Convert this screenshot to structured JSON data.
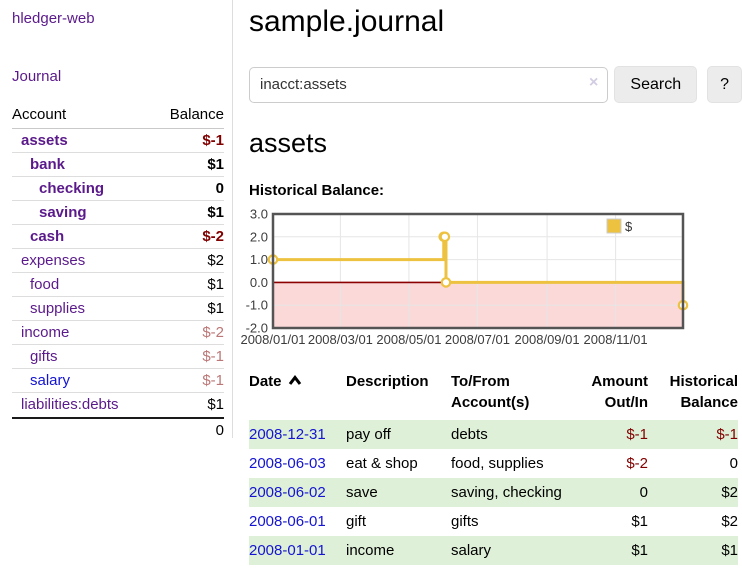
{
  "sidebar": {
    "brand": "hledger-web",
    "nav_journal": "Journal",
    "accounts_header": {
      "account": "Account",
      "balance": "Balance"
    },
    "accounts": [
      {
        "name": "assets",
        "indent": 1,
        "bold": true,
        "balance": "$-1",
        "balance_class": "neg",
        "link_color": "purple"
      },
      {
        "name": "bank",
        "indent": 2,
        "bold": true,
        "balance": "$1",
        "balance_class": "",
        "link_color": "purple"
      },
      {
        "name": "checking",
        "indent": 3,
        "bold": true,
        "balance": "0",
        "balance_class": "",
        "link_color": "purple"
      },
      {
        "name": "saving",
        "indent": 3,
        "bold": true,
        "balance": "$1",
        "balance_class": "",
        "link_color": "purple"
      },
      {
        "name": "cash",
        "indent": 2,
        "bold": true,
        "balance": "$-2",
        "balance_class": "neg",
        "link_color": "purple"
      },
      {
        "name": "expenses",
        "indent": 1,
        "bold": false,
        "balance": "$2",
        "balance_class": "",
        "link_color": "purple"
      },
      {
        "name": "food",
        "indent": 2,
        "bold": false,
        "balance": "$1",
        "balance_class": "",
        "link_color": "purple"
      },
      {
        "name": "supplies",
        "indent": 2,
        "bold": false,
        "balance": "$1",
        "balance_class": "",
        "link_color": "purple"
      },
      {
        "name": "income",
        "indent": 1,
        "bold": false,
        "balance": "$-2",
        "balance_class": "negdim",
        "link_color": "purple"
      },
      {
        "name": "gifts",
        "indent": 2,
        "bold": false,
        "balance": "$-1",
        "balance_class": "negdim",
        "link_color": "purple"
      },
      {
        "name": "salary",
        "indent": 2,
        "bold": false,
        "balance": "$-1",
        "balance_class": "negdim",
        "link_color": "blue"
      },
      {
        "name": "liabilities:debts",
        "indent": 1,
        "bold": false,
        "balance": "$1",
        "balance_class": "",
        "link_color": "purple"
      }
    ],
    "total": "0"
  },
  "main": {
    "title": "sample.journal",
    "search": {
      "value": "inacct:assets",
      "clear_icon": "×",
      "button_label": "Search",
      "help_label": "?"
    },
    "account_heading": "assets",
    "chart_label": "Historical Balance:"
  },
  "chart_data": {
    "type": "line",
    "step": true,
    "title": "Historical Balance",
    "series": [
      {
        "name": "$",
        "points": [
          [
            "2008-01-01",
            1
          ],
          [
            "2008-06-01",
            2
          ],
          [
            "2008-06-02",
            2
          ],
          [
            "2008-06-03",
            0
          ],
          [
            "2008-12-31",
            -1
          ]
        ],
        "color": "#edc240"
      }
    ],
    "xlim": [
      "2008-01-01",
      "2008-12-31"
    ],
    "ylim": [
      -2,
      3
    ],
    "y_ticks": [
      "3.0",
      "2.0",
      "1.0",
      "0.0",
      "-1.0",
      "-2.0"
    ],
    "x_ticks": [
      {
        "date": "2008-01-01",
        "label": "2008/01/01"
      },
      {
        "date": "2008-03-01",
        "label": "2008/03/01"
      },
      {
        "date": "2008-05-01",
        "label": "2008/05/01"
      },
      {
        "date": "2008-07-01",
        "label": "2008/07/01"
      },
      {
        "date": "2008-09-01",
        "label": "2008/09/01"
      },
      {
        "date": "2008-11-01",
        "label": "2008/11/01"
      }
    ],
    "grid": true,
    "legend_position": "top-right",
    "legend_label": "$",
    "colors": {
      "line": "#edc240",
      "marker_fill": "#ffffff",
      "negative_region": "#fbd9d9",
      "zero_line": "#8b0000",
      "grid": "#e6e6e6",
      "border": "#545454",
      "tick_text": "#3c3c3c"
    }
  },
  "table": {
    "headers": {
      "date": "Date",
      "description": "Description",
      "accounts": "To/From Account(s)",
      "amount": "Amount Out/In",
      "balance": "Historical Balance"
    },
    "rows": [
      {
        "date": "2008-12-31",
        "description": "pay off",
        "accounts": "debts",
        "amount": "$-1",
        "amount_class": "neg",
        "balance": "$-1",
        "balance_class": "neg"
      },
      {
        "date": "2008-06-03",
        "description": "eat & shop",
        "accounts": "food, supplies",
        "amount": "$-2",
        "amount_class": "neg",
        "balance": "0",
        "balance_class": ""
      },
      {
        "date": "2008-06-02",
        "description": "save",
        "accounts": "saving, checking",
        "amount": "0",
        "amount_class": "",
        "balance": "$2",
        "balance_class": ""
      },
      {
        "date": "2008-06-01",
        "description": "gift",
        "accounts": "gifts",
        "amount": "$1",
        "amount_class": "",
        "balance": "$2",
        "balance_class": ""
      },
      {
        "date": "2008-01-01",
        "description": "income",
        "accounts": "salary",
        "amount": "$1",
        "amount_class": "",
        "balance": "$1",
        "balance_class": ""
      }
    ]
  },
  "colors": {
    "link_purple": "#5b1a8b",
    "link_blue": "#1414d2",
    "negative": "#800000",
    "negative_dim": "#bb7777",
    "row_stripe_green": "#dff0d8",
    "button_bg": "#ececec",
    "divider": "#dddddd"
  }
}
